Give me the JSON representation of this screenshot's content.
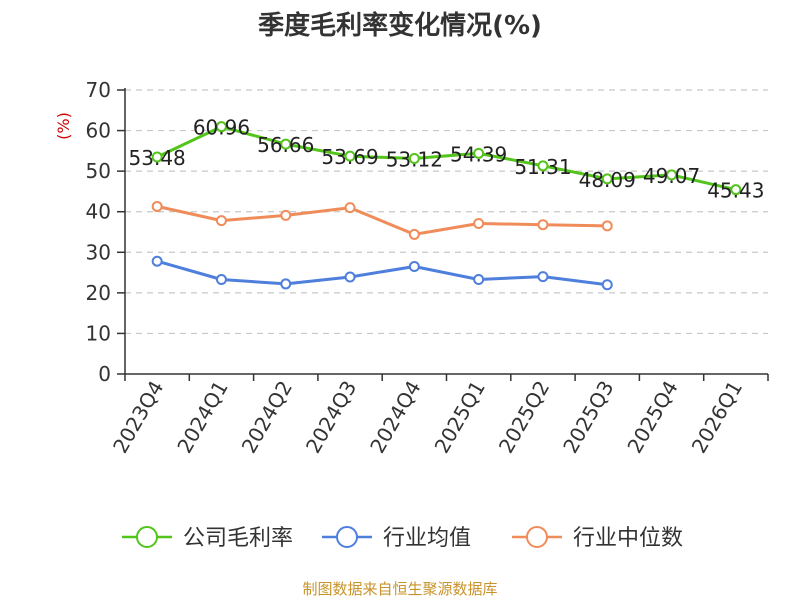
{
  "chart_data": {
    "type": "line",
    "title": "季度毛利率变化情况(%)",
    "ylabel": "(%)",
    "ylim": [
      0,
      70
    ],
    "yticks": [
      "0",
      "10",
      "20",
      "30",
      "40",
      "50",
      "60",
      "70"
    ],
    "categories": [
      "2023Q4",
      "2024Q1",
      "2024Q2",
      "2024Q3",
      "2024Q4",
      "2025Q1",
      "2025Q2",
      "2025Q3",
      "2025Q4",
      "2026Q1"
    ],
    "grid": true,
    "legend_position": "bottom",
    "series": [
      {
        "name": "公司毛利率",
        "color": "#52c41a",
        "show_labels": true,
        "values": [
          53.48,
          60.96,
          56.66,
          53.69,
          53.12,
          54.39,
          51.31,
          48.09,
          49.07,
          45.43
        ]
      },
      {
        "name": "行业均值",
        "color": "#4e7fdc",
        "show_labels": false,
        "values": [
          27.8,
          23.3,
          22.2,
          23.9,
          26.5,
          23.3,
          24.0,
          22.0,
          null,
          null
        ]
      },
      {
        "name": "行业中位数",
        "color": "#f08c5a",
        "show_labels": false,
        "values": [
          41.3,
          37.8,
          39.1,
          41.0,
          34.4,
          37.1,
          36.8,
          36.5,
          null,
          null
        ]
      }
    ],
    "source": "制图数据来自恒生聚源数据库"
  }
}
